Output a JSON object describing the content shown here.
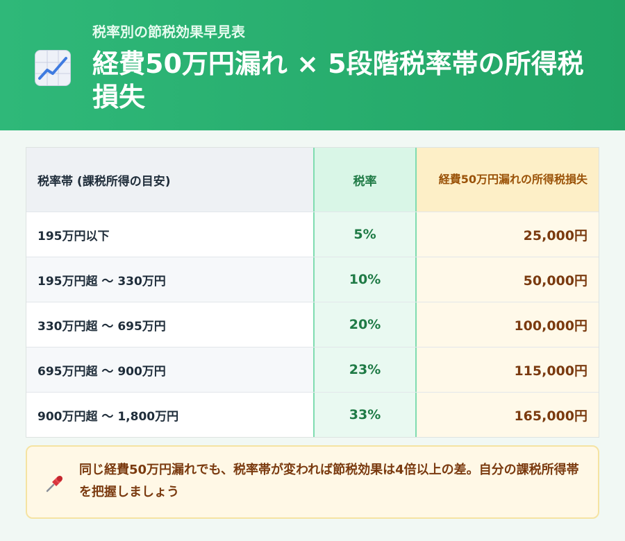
{
  "header": {
    "icon": "chart-increasing-icon",
    "subtitle": "税率別の節税効果早見表",
    "title": "経費50万円漏れ × 5段階税率帯の所得税損失"
  },
  "table": {
    "headers": [
      "税率帯 (課税所得の目安)",
      "税率",
      "経費50万円漏れの所得税損失"
    ],
    "rows": [
      {
        "band": "195万円以下",
        "rate": "5%",
        "loss": "25,000円"
      },
      {
        "band": "195万円超 〜 330万円",
        "rate": "10%",
        "loss": "50,000円"
      },
      {
        "band": "330万円超 〜 695万円",
        "rate": "20%",
        "loss": "100,000円"
      },
      {
        "band": "695万円超 〜 900万円",
        "rate": "23%",
        "loss": "115,000円"
      },
      {
        "band": "900万円超 〜 1,800万円",
        "rate": "33%",
        "loss": "165,000円"
      }
    ]
  },
  "note": {
    "icon": "pushpin-icon",
    "text": "同じ経費50万円漏れでも、税率帯が変われば節税効果は4倍以上の差。自分の課税所得帯を把握しましょう"
  },
  "colors": {
    "header_green": "#27ad6c",
    "rate_green": "#1e7a45",
    "loss_brown": "#7a3a0f",
    "note_bg": "#fff8e6"
  }
}
